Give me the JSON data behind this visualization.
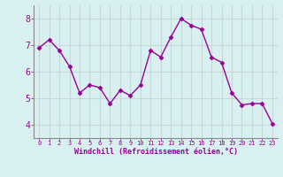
{
  "x": [
    0,
    1,
    2,
    3,
    4,
    5,
    6,
    7,
    8,
    9,
    10,
    11,
    12,
    13,
    14,
    15,
    16,
    17,
    18,
    19,
    20,
    21,
    22,
    23
  ],
  "y": [
    6.9,
    7.2,
    6.8,
    6.2,
    5.2,
    5.5,
    5.4,
    4.8,
    5.3,
    5.1,
    5.5,
    6.8,
    6.55,
    7.3,
    8.0,
    7.75,
    7.6,
    6.55,
    6.35,
    5.2,
    4.75,
    4.8,
    4.8,
    4.05
  ],
  "line_color": "#990099",
  "marker": "D",
  "marker_size": 2.5,
  "line_width": 1.0,
  "bg_color": "#d8f0f0",
  "grid_color": "#c8d8d8",
  "xlabel": "Windchill (Refroidissement éolien,°C)",
  "xlabel_color": "#990099",
  "tick_color": "#990099",
  "spine_color": "#888888",
  "ylim": [
    3.5,
    8.5
  ],
  "xlim": [
    -0.5,
    23.5
  ],
  "yticks": [
    4,
    5,
    6,
    7,
    8
  ],
  "xticks": [
    0,
    1,
    2,
    3,
    4,
    5,
    6,
    7,
    8,
    9,
    10,
    11,
    12,
    13,
    14,
    15,
    16,
    17,
    18,
    19,
    20,
    21,
    22,
    23
  ]
}
